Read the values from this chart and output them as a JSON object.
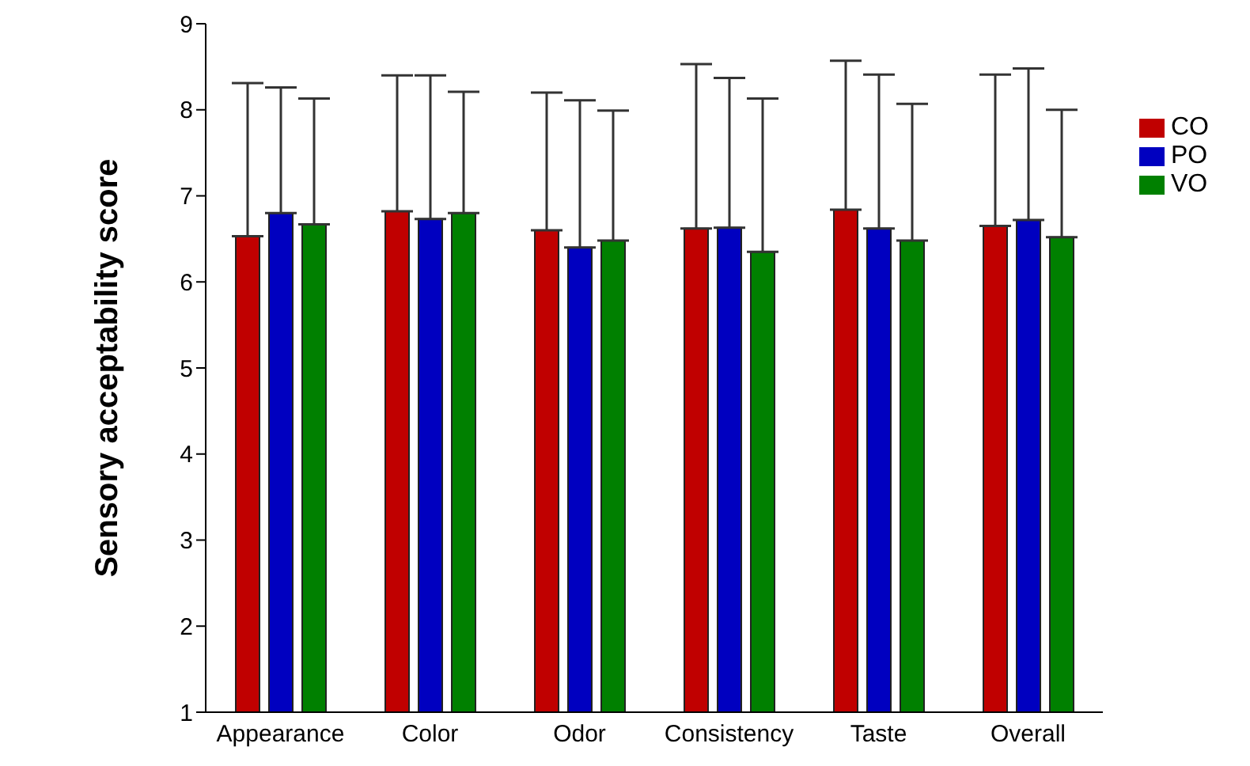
{
  "chart_data": {
    "type": "bar",
    "ylabel": "Sensory acceptability score",
    "categories": [
      "Appearance",
      "Color",
      "Odor",
      "Consistency",
      "Taste",
      "Overall"
    ],
    "series": [
      {
        "name": "CO",
        "color": "#c00000",
        "values": [
          6.53,
          6.82,
          6.6,
          6.62,
          6.84,
          6.65
        ],
        "errors": [
          [
            6.53,
            8.31
          ],
          [
            6.82,
            8.4
          ],
          [
            6.6,
            8.2
          ],
          [
            6.62,
            8.53
          ],
          [
            6.84,
            8.57
          ],
          [
            6.65,
            8.41
          ]
        ]
      },
      {
        "name": "PO",
        "color": "#0000c0",
        "values": [
          6.8,
          6.73,
          6.4,
          6.63,
          6.62,
          6.72
        ],
        "errors": [
          [
            6.8,
            8.26
          ],
          [
            6.73,
            8.4
          ],
          [
            6.4,
            8.11
          ],
          [
            6.63,
            8.37
          ],
          [
            6.62,
            8.41
          ],
          [
            6.72,
            8.48
          ]
        ]
      },
      {
        "name": "VO",
        "color": "#008000",
        "values": [
          6.67,
          6.8,
          6.48,
          6.35,
          6.48,
          6.52
        ],
        "errors": [
          [
            6.67,
            8.13
          ],
          [
            6.8,
            8.21
          ],
          [
            6.48,
            7.99
          ],
          [
            6.35,
            8.13
          ],
          [
            6.48,
            8.07
          ],
          [
            6.52,
            8.0
          ]
        ]
      }
    ],
    "ylim": [
      1,
      9
    ],
    "yticks": [
      1,
      2,
      3,
      4,
      5,
      6,
      7,
      8,
      9
    ],
    "grid": false,
    "legend": "top right"
  }
}
